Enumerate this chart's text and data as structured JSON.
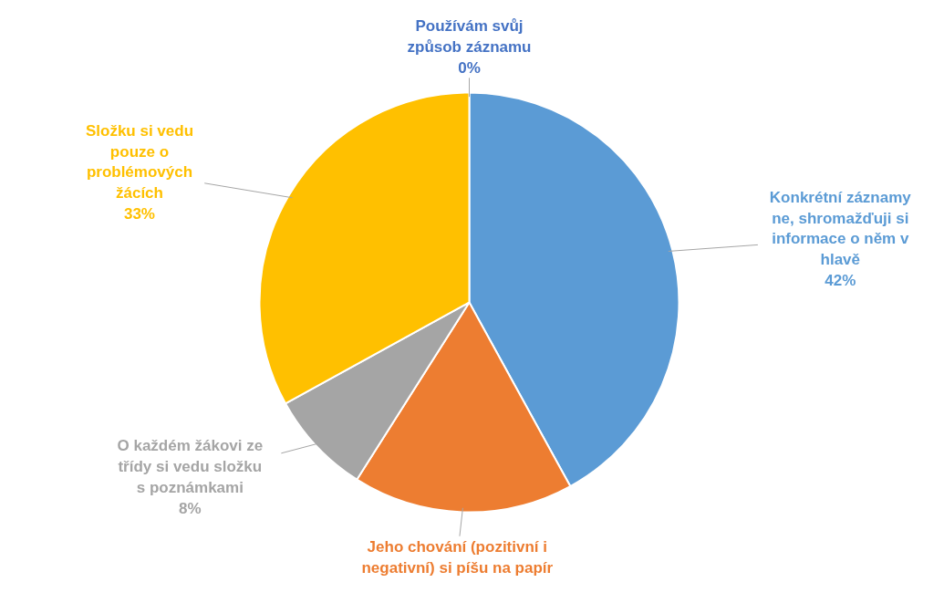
{
  "chart_data": {
    "type": "pie",
    "categories": [
      "Konkrétní záznamy\nne, shromažďuji si\ninformace o něm v\nhlavě",
      "Jeho chování (pozitivní i\nnegativní) si píšu na papír",
      "O každém žákovi ze\ntřídy si vedu složku\ns poznámkami",
      "Složku si vedu\npouze o\nproblémových\nžácích",
      "Používám svůj\nzpůsob záznamu"
    ],
    "values": [
      42,
      17,
      8,
      33,
      0
    ],
    "value_labels": [
      "42%",
      null,
      "8%",
      "33%",
      "0%"
    ],
    "colors": [
      "#5b9bd5",
      "#ed7d31",
      "#a5a5a5",
      "#ffc000",
      "#4472c4"
    ]
  }
}
